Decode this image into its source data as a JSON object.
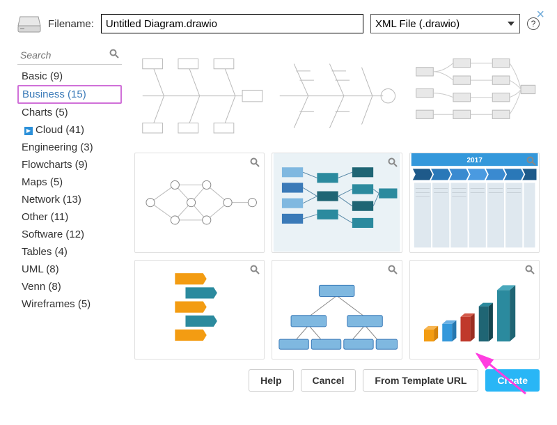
{
  "close_x": "×",
  "filename_label": "Filename:",
  "filename_value": "Untitled Diagram.drawio",
  "format_value": "XML File (.drawio)",
  "help_q": "?",
  "search_placeholder": "Search",
  "categories": [
    {
      "label": "Basic (9)",
      "selected": false,
      "expand": false
    },
    {
      "label": "Business (15)",
      "selected": true,
      "expand": false
    },
    {
      "label": "Charts (5)",
      "selected": false,
      "expand": false
    },
    {
      "label": "Cloud (41)",
      "selected": false,
      "expand": true
    },
    {
      "label": "Engineering (3)",
      "selected": false,
      "expand": false
    },
    {
      "label": "Flowcharts (9)",
      "selected": false,
      "expand": false
    },
    {
      "label": "Maps (5)",
      "selected": false,
      "expand": false
    },
    {
      "label": "Network (13)",
      "selected": false,
      "expand": false
    },
    {
      "label": "Other (11)",
      "selected": false,
      "expand": false
    },
    {
      "label": "Software (12)",
      "selected": false,
      "expand": false
    },
    {
      "label": "Tables (4)",
      "selected": false,
      "expand": false
    },
    {
      "label": "UML (8)",
      "selected": false,
      "expand": false
    },
    {
      "label": "Venn (8)",
      "selected": false,
      "expand": false
    },
    {
      "label": "Wireframes (5)",
      "selected": false,
      "expand": false
    }
  ],
  "thumbs": {
    "t5_year": "2017",
    "colors": {
      "teal": "#2b8a9e",
      "teal_dark": "#1f6574",
      "blue_light": "#7fb8e0",
      "blue_mid": "#3a7ab8",
      "blue_header": "#3498db",
      "gray_line": "#cccccc",
      "gray_box": "#e8e8e8",
      "orange": "#f39c12",
      "red": "#c0392b",
      "dark_teal": "#16a085"
    }
  },
  "buttons": {
    "help": "Help",
    "cancel": "Cancel",
    "from_url": "From Template URL",
    "create": "Create"
  }
}
